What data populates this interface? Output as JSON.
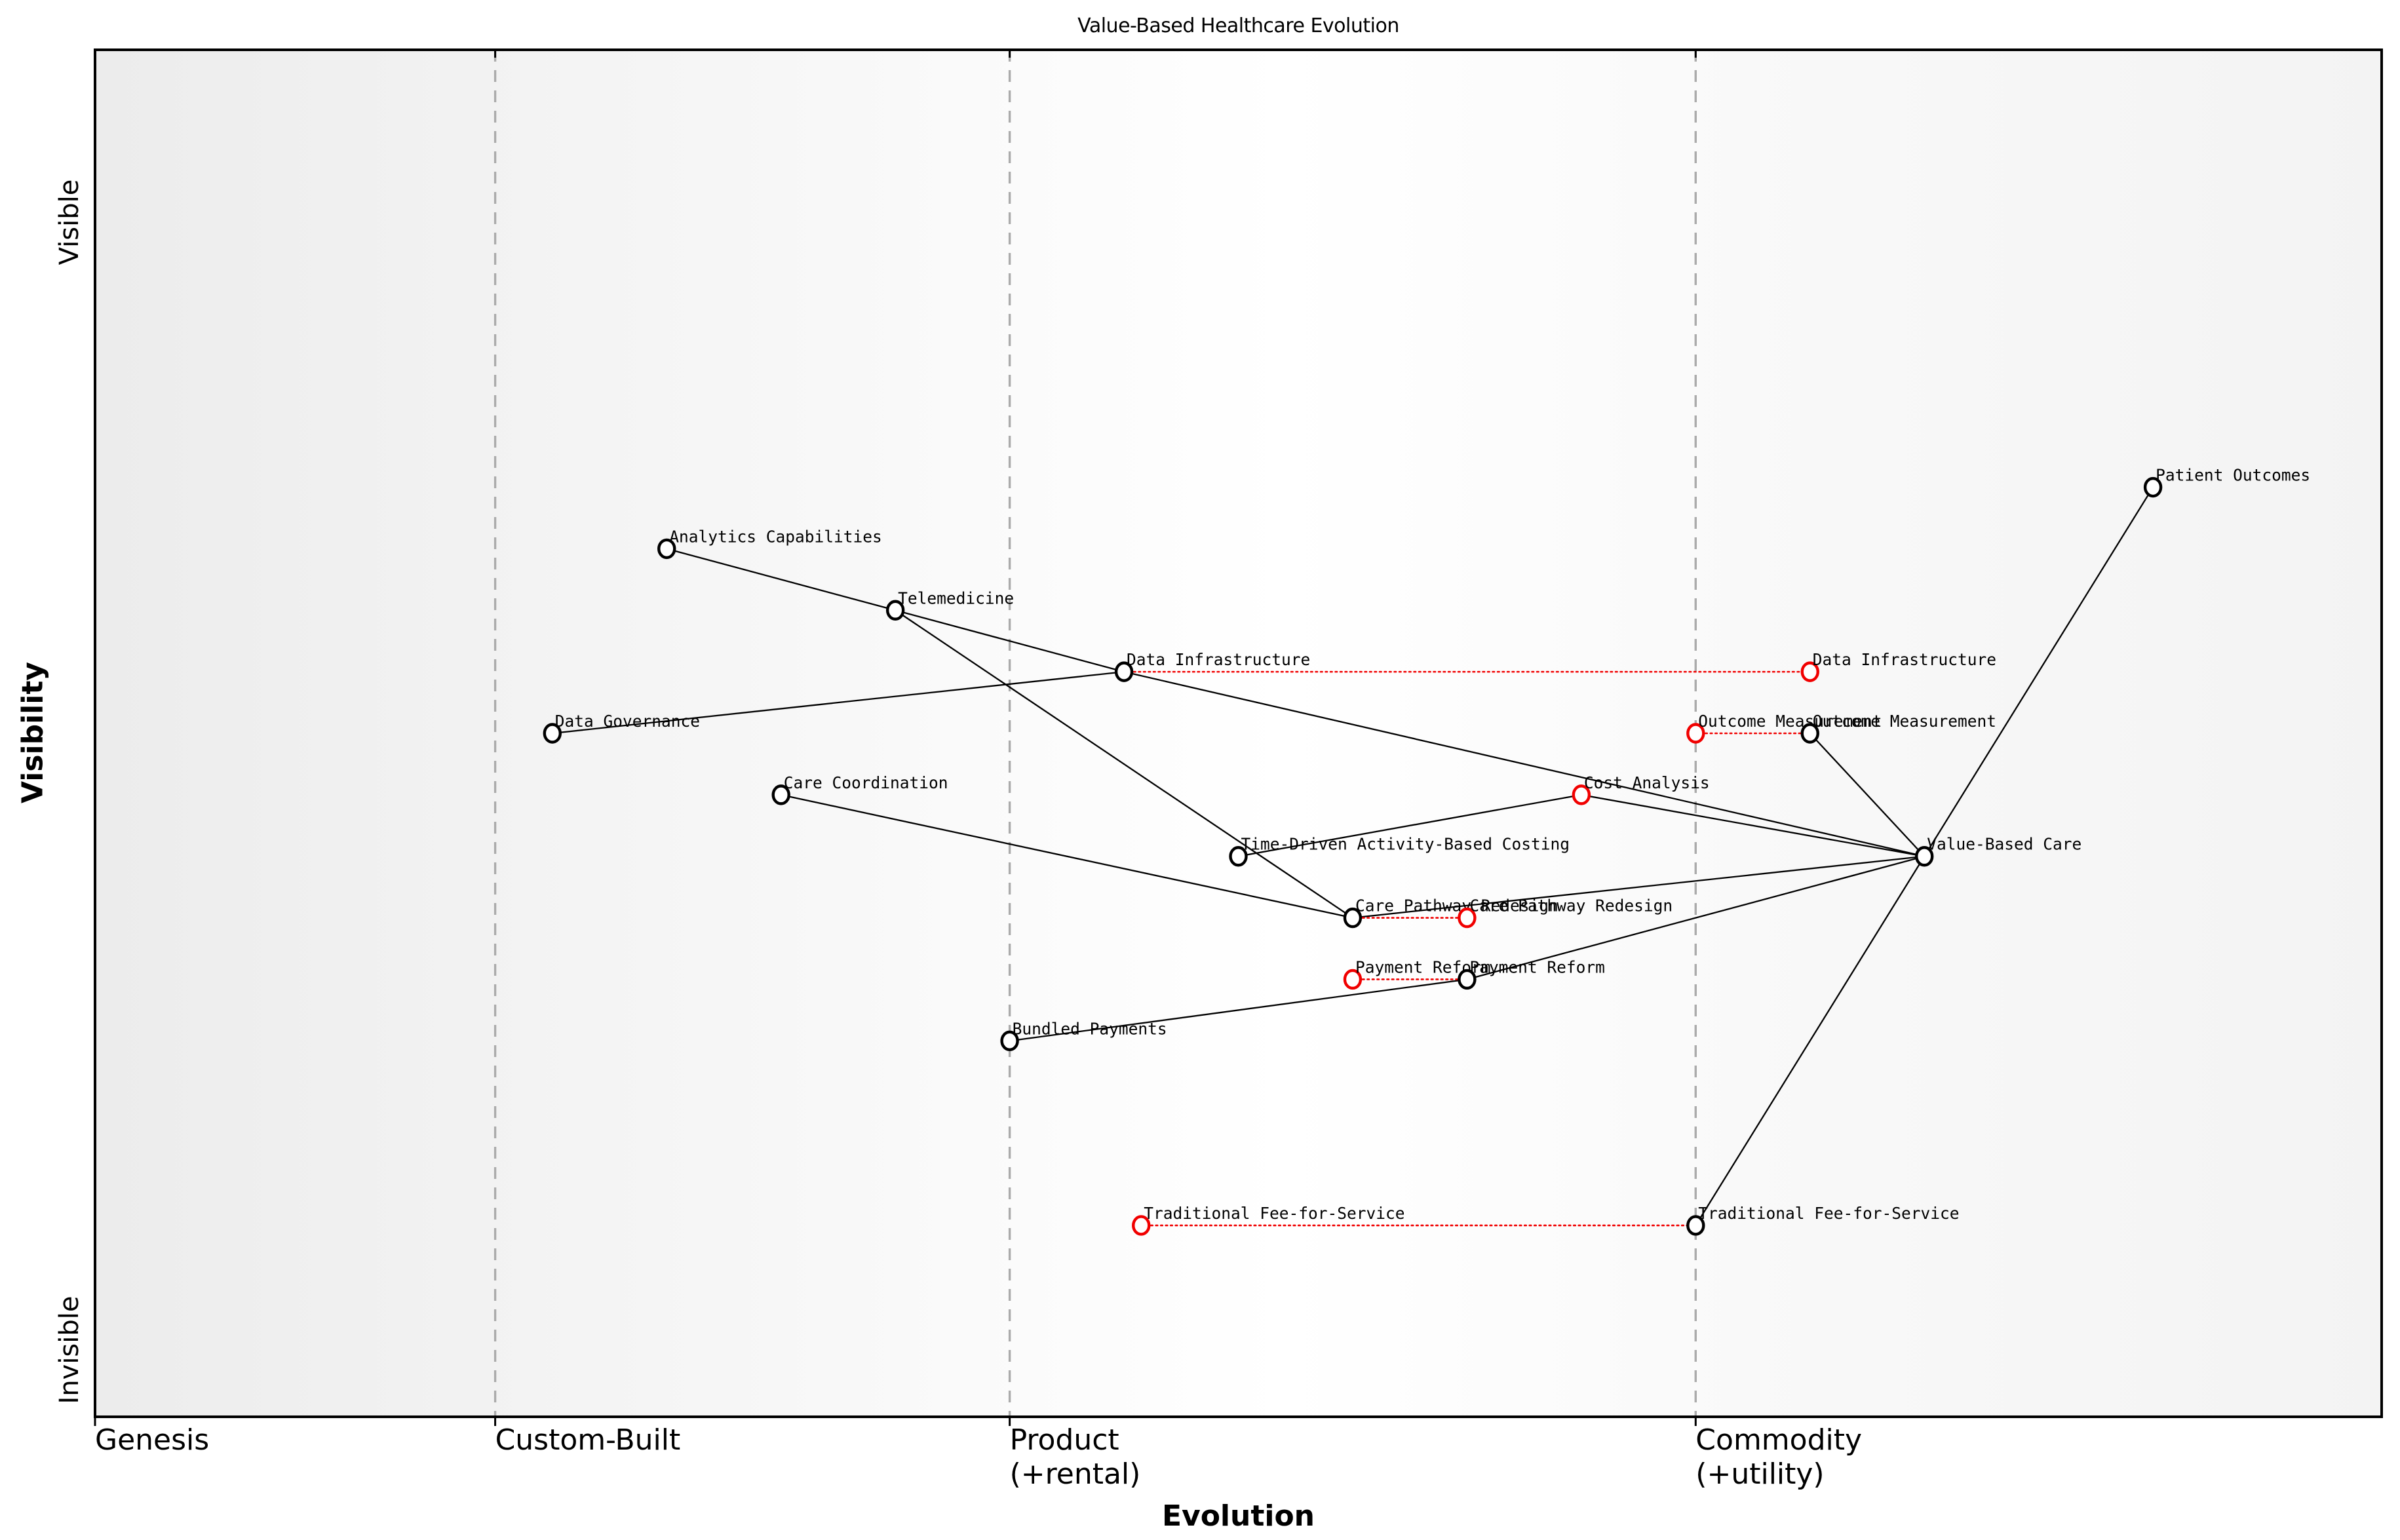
{
  "title": "Value-Based Healthcare Evolution",
  "axes": {
    "x_label": "Evolution",
    "y_label": "Visibility",
    "y_top": "Visible",
    "y_bottom": "Invisible",
    "stages": [
      {
        "id": "genesis",
        "label": "Genesis",
        "sub": "",
        "ev": 0.0
      },
      {
        "id": "custom-built",
        "label": "Custom-Built",
        "sub": "",
        "ev": 0.175
      },
      {
        "id": "product",
        "label": "Product",
        "sub": "(+rental)",
        "ev": 0.4
      },
      {
        "id": "commodity",
        "label": "Commodity",
        "sub": "(+utility)",
        "ev": 0.7
      }
    ],
    "boundaries": [
      0.175,
      0.4,
      0.7
    ]
  },
  "colors": {
    "node_stroke": "#000000",
    "evolve_stroke": "#f10000",
    "evolve_link": "#f10000",
    "edge": "#000000",
    "boundary": "#ababab",
    "border": "#000000",
    "bg_left": "#ececec",
    "bg_mid": "#ffffff",
    "bg_right": "#f3f3f3",
    "text": "#000000"
  },
  "map": {
    "nodes": [
      {
        "id": "patient-outcomes",
        "label": "Patient Outcomes",
        "ev": 0.9,
        "vis": 0.68,
        "kind": "node"
      },
      {
        "id": "analytics-capabilities",
        "label": "Analytics Capabilities",
        "ev": 0.25,
        "vis": 0.635,
        "kind": "node"
      },
      {
        "id": "telemedicine",
        "label": "Telemedicine",
        "ev": 0.35,
        "vis": 0.59,
        "kind": "node"
      },
      {
        "id": "data-infrastructure",
        "label": "Data Infrastructure",
        "ev": 0.45,
        "vis": 0.545,
        "kind": "node"
      },
      {
        "id": "data-infrastructure-evolved",
        "label": "Data Infrastructure",
        "ev": 0.75,
        "vis": 0.545,
        "kind": "evolve"
      },
      {
        "id": "data-governance",
        "label": "Data Governance",
        "ev": 0.2,
        "vis": 0.5,
        "kind": "node"
      },
      {
        "id": "outcome-measurement-evolved",
        "label": "Outcome Measurement",
        "ev": 0.7,
        "vis": 0.5,
        "kind": "evolve"
      },
      {
        "id": "outcome-measurement",
        "label": "Outcome Measurement",
        "ev": 0.75,
        "vis": 0.5,
        "kind": "node"
      },
      {
        "id": "care-coordination",
        "label": "Care Coordination",
        "ev": 0.3,
        "vis": 0.455,
        "kind": "node"
      },
      {
        "id": "cost-analysis-evolved",
        "label": "Cost Analysis",
        "ev": 0.65,
        "vis": 0.455,
        "kind": "evolve"
      },
      {
        "id": "time-driven-abc",
        "label": "Time-Driven Activity-Based Costing",
        "ev": 0.5,
        "vis": 0.41,
        "kind": "node"
      },
      {
        "id": "value-based-care",
        "label": "Value-Based Care",
        "ev": 0.8,
        "vis": 0.41,
        "kind": "node"
      },
      {
        "id": "care-pathway-redesign",
        "label": "Care Pathway Redesign",
        "ev": 0.55,
        "vis": 0.365,
        "kind": "node"
      },
      {
        "id": "care-pathway-redesign-evolved",
        "label": "Care Pathway Redesign",
        "ev": 0.6,
        "vis": 0.365,
        "kind": "evolve"
      },
      {
        "id": "payment-reform-evolved",
        "label": "Payment Reform",
        "ev": 0.55,
        "vis": 0.32,
        "kind": "evolve"
      },
      {
        "id": "payment-reform",
        "label": "Payment Reform",
        "ev": 0.6,
        "vis": 0.32,
        "kind": "node"
      },
      {
        "id": "bundled-payments",
        "label": "Bundled Payments",
        "ev": 0.4,
        "vis": 0.275,
        "kind": "node"
      },
      {
        "id": "traditional-ffs-evolved",
        "label": "Traditional Fee-for-Service",
        "ev": 0.4575,
        "vis": 0.14,
        "kind": "evolve"
      },
      {
        "id": "traditional-ffs",
        "label": "Traditional Fee-for-Service",
        "ev": 0.7,
        "vis": 0.14,
        "kind": "node"
      }
    ],
    "edges": [
      {
        "from": "analytics-capabilities",
        "to": "telemedicine"
      },
      {
        "from": "telemedicine",
        "to": "data-infrastructure"
      },
      {
        "from": "telemedicine",
        "to": "care-pathway-redesign"
      },
      {
        "from": "data-governance",
        "to": "data-infrastructure"
      },
      {
        "from": "data-infrastructure",
        "to": "value-based-care"
      },
      {
        "from": "care-coordination",
        "to": "care-pathway-redesign"
      },
      {
        "from": "time-driven-abc",
        "to": "cost-analysis-evolved"
      },
      {
        "from": "cost-analysis-evolved",
        "to": "value-based-care"
      },
      {
        "from": "care-pathway-redesign",
        "to": "value-based-care"
      },
      {
        "from": "bundled-payments",
        "to": "payment-reform"
      },
      {
        "from": "payment-reform",
        "to": "value-based-care"
      },
      {
        "from": "traditional-ffs",
        "to": "value-based-care"
      },
      {
        "from": "outcome-measurement",
        "to": "value-based-care"
      },
      {
        "from": "patient-outcomes",
        "to": "value-based-care"
      }
    ],
    "evolve_links": [
      {
        "from": "data-infrastructure",
        "to": "data-infrastructure-evolved"
      },
      {
        "from": "outcome-measurement-evolved",
        "to": "outcome-measurement"
      },
      {
        "from": "care-pathway-redesign",
        "to": "care-pathway-redesign-evolved"
      },
      {
        "from": "payment-reform-evolved",
        "to": "payment-reform"
      },
      {
        "from": "traditional-ffs-evolved",
        "to": "traditional-ffs"
      }
    ]
  }
}
